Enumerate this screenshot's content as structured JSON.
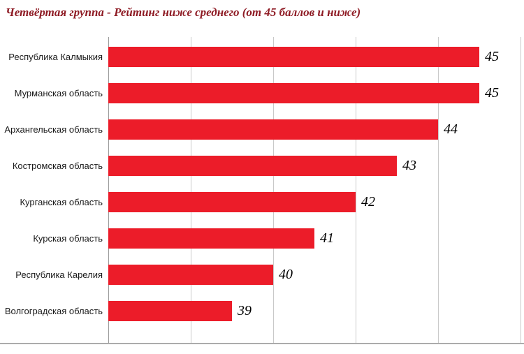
{
  "title": "Четвёртая группа - Рейтинг ниже среднего (от 45 баллов и ниже)",
  "colors": {
    "bar": "#ec1c29",
    "title": "#8e1b24",
    "grid": "#c9c9c9",
    "axis": "#9a9a9a"
  },
  "chart_data": {
    "type": "bar",
    "orientation": "horizontal",
    "title": "Четвёртая группа - Рейтинг ниже среднего (от 45 баллов и ниже)",
    "categories": [
      "Республика Калмыкия",
      "Мурманская область",
      "Архангельская область",
      "Костромская область",
      "Курганская область",
      "Курская область",
      "Республика Карелия",
      "Волгоградская область"
    ],
    "values": [
      45,
      45,
      44,
      43,
      42,
      41,
      40,
      39
    ],
    "value_labels": [
      "45",
      "45",
      "44",
      "43",
      "42",
      "41",
      "40",
      "39"
    ],
    "xlabel": "",
    "ylabel": "",
    "xlim": [
      36,
      46
    ],
    "gridline_step": 2,
    "grid": true,
    "legend": false
  }
}
